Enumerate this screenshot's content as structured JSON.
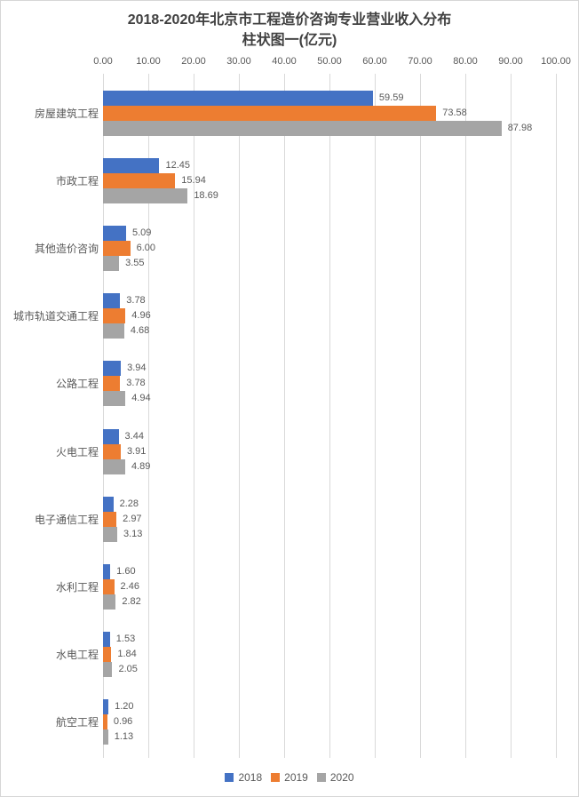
{
  "title": {
    "line1": "2018-2020年北京市工程造价咨询专业营业收入分布",
    "line2": "柱状图一(亿元)"
  },
  "chart_data": {
    "type": "bar",
    "orientation": "horizontal",
    "title": "2018-2020年北京市工程造价咨询专业营业收入分布 柱状图一(亿元)",
    "unit": "亿元",
    "categories": [
      "房屋建筑工程",
      "市政工程",
      "其他造价咨询",
      "城市轨道交通工程",
      "公路工程",
      "火电工程",
      "电子通信工程",
      "水利工程",
      "水电工程",
      "航空工程"
    ],
    "series": [
      {
        "name": "2018",
        "color": "#4472C4",
        "values": [
          59.59,
          12.45,
          5.09,
          3.78,
          3.94,
          3.44,
          2.28,
          1.6,
          1.53,
          1.2
        ]
      },
      {
        "name": "2019",
        "color": "#ED7D31",
        "values": [
          73.58,
          15.94,
          6.0,
          4.96,
          3.78,
          3.91,
          2.97,
          2.46,
          1.84,
          0.96
        ]
      },
      {
        "name": "2020",
        "color": "#A5A5A5",
        "values": [
          87.98,
          18.69,
          3.55,
          4.68,
          4.94,
          4.89,
          3.13,
          2.82,
          2.05,
          1.13
        ]
      }
    ],
    "x_axis": {
      "position": "top",
      "min": 0,
      "max": 100,
      "tick_labels": [
        "0.00",
        "10.00",
        "20.00",
        "30.00",
        "40.00",
        "50.00",
        "60.00",
        "70.00",
        "80.00",
        "90.00",
        "100.00"
      ]
    },
    "grid": true,
    "data_labels": true,
    "legend": {
      "position": "bottom",
      "entries": [
        "2018",
        "2019",
        "2020"
      ]
    }
  },
  "colors": {
    "gridline": "#D9D9D9",
    "axis_text": "#595959",
    "title_text": "#404040",
    "data_label_text": "#595959",
    "frame_border": "#D6D6D6"
  }
}
